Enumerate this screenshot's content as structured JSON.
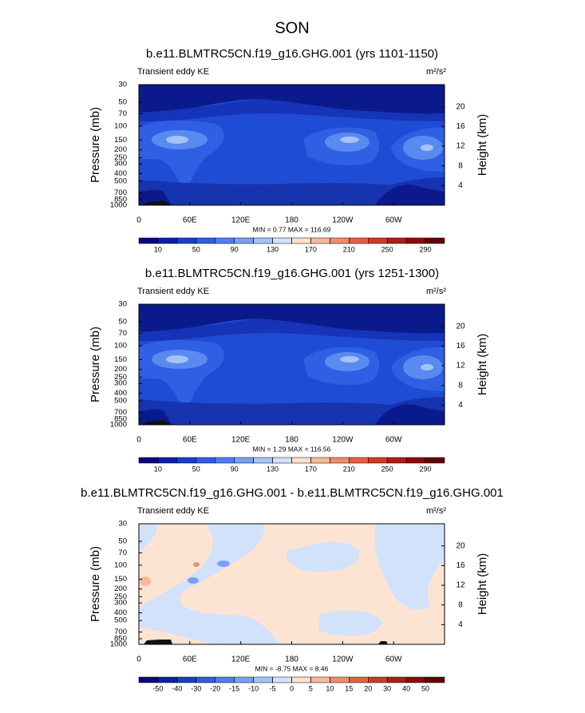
{
  "title": "SON",
  "chart_data": [
    {
      "type": "contour",
      "title": "b.e11.BLMTRC5CN.f19_g16.GHG.001 (yrs 1101-1150)",
      "left_label": "Transient eddy KE",
      "units": "m²/s²",
      "ylabel": "Pressure (mb)",
      "y2label": "Height (km)",
      "ylog": true,
      "ylim": [
        1000,
        30
      ],
      "yticks": [
        30,
        50,
        70,
        100,
        150,
        200,
        250,
        300,
        400,
        500,
        700,
        850,
        1000
      ],
      "y2lim": [
        0,
        24.5
      ],
      "y2ticks": [
        4,
        8,
        12,
        16,
        20
      ],
      "xlim": [
        0,
        360
      ],
      "xticks": [
        0,
        {
          "value": 60,
          "label": "60E"
        },
        {
          "value": 120,
          "label": "120E"
        },
        180,
        {
          "value": 240,
          "label": "120W"
        },
        {
          "value": 300,
          "label": "60W"
        }
      ],
      "stats": "MIN =   0.77  MAX = 116.69",
      "colorbar_levels": [
        10,
        30,
        50,
        70,
        90,
        110,
        130,
        150,
        170,
        190,
        210,
        230,
        250,
        270,
        290
      ],
      "colorbar_label_stride": 2,
      "colors": [
        "#08087e",
        "#0c20a6",
        "#1840c8",
        "#2e5ee0",
        "#4d80ee",
        "#76a2f5",
        "#a4c4f9",
        "#d0e2fc",
        "#fde0cc",
        "#f8b89a",
        "#f08e6a",
        "#e3623f",
        "#cc3b22",
        "#ae1e12",
        "#8c0b08",
        "#660000"
      ]
    },
    {
      "type": "contour",
      "title": "b.e11.BLMTRC5CN.f19_g16.GHG.001 (yrs 1251-1300)",
      "left_label": "Transient eddy KE",
      "units": "m²/s²",
      "ylabel": "Pressure (mb)",
      "y2label": "Height (km)",
      "ylog": true,
      "ylim": [
        1000,
        30
      ],
      "yticks": [
        30,
        50,
        70,
        100,
        150,
        200,
        250,
        300,
        400,
        500,
        700,
        850,
        1000
      ],
      "y2lim": [
        0,
        24.5
      ],
      "y2ticks": [
        4,
        8,
        12,
        16,
        20
      ],
      "xlim": [
        0,
        360
      ],
      "xticks": [
        0,
        {
          "value": 60,
          "label": "60E"
        },
        {
          "value": 120,
          "label": "120E"
        },
        180,
        {
          "value": 240,
          "label": "120W"
        },
        {
          "value": 300,
          "label": "60W"
        }
      ],
      "stats": "MIN =   1.29  MAX = 116.56",
      "colorbar_levels": [
        10,
        30,
        50,
        70,
        90,
        110,
        130,
        150,
        170,
        190,
        210,
        230,
        250,
        270,
        290
      ],
      "colorbar_label_stride": 2,
      "colors": [
        "#08087e",
        "#0c20a6",
        "#1840c8",
        "#2e5ee0",
        "#4d80ee",
        "#76a2f5",
        "#a4c4f9",
        "#d0e2fc",
        "#fde0cc",
        "#f8b89a",
        "#f08e6a",
        "#e3623f",
        "#cc3b22",
        "#ae1e12",
        "#8c0b08",
        "#660000"
      ]
    },
    {
      "type": "contour",
      "title": "b.e11.BLMTRC5CN.f19_g16.GHG.001 - b.e11.BLMTRC5CN.f19_g16.GHG.001",
      "left_label": "Transient eddy KE",
      "units": "m²/s²",
      "ylabel": "Pressure (mb)",
      "y2label": "Height (km)",
      "ylog": true,
      "ylim": [
        1000,
        30
      ],
      "yticks": [
        30,
        50,
        70,
        100,
        150,
        200,
        250,
        300,
        400,
        500,
        700,
        850,
        1000
      ],
      "y2lim": [
        0,
        24.5
      ],
      "y2ticks": [
        4,
        8,
        12,
        16,
        20
      ],
      "xlim": [
        0,
        360
      ],
      "xticks": [
        0,
        {
          "value": 60,
          "label": "60E"
        },
        {
          "value": 120,
          "label": "120E"
        },
        180,
        {
          "value": 240,
          "label": "120W"
        },
        {
          "value": 300,
          "label": "60W"
        }
      ],
      "stats": "MIN =  -8.75  MAX =   8.46",
      "colorbar_levels": [
        -50,
        -40,
        -30,
        -20,
        -15,
        -10,
        -5,
        0,
        5,
        10,
        15,
        20,
        30,
        40,
        50
      ],
      "colorbar_label_stride": 1,
      "colors": [
        "#08087e",
        "#0c20a6",
        "#1840c8",
        "#2e5ee0",
        "#4d80ee",
        "#76a2f5",
        "#a4c4f9",
        "#d0e2fc",
        "#fde0cc",
        "#f8b89a",
        "#f08e6a",
        "#e3623f",
        "#cc3b22",
        "#ae1e12",
        "#8c0b08",
        "#660000"
      ]
    }
  ]
}
